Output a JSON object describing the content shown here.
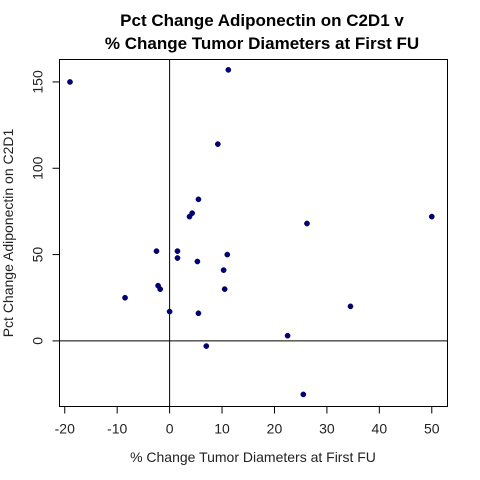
{
  "chart_data": {
    "type": "scatter",
    "title_lines": [
      "Pct Change Adiponectin on C2D1 v",
      "% Change Tumor Diameters at First FU"
    ],
    "xlabel": "% Change Tumor Diameters at First FU",
    "ylabel": "Pct Change Adiponectin on C2D1",
    "xlim": [
      -21,
      53
    ],
    "ylim": [
      -38,
      163
    ],
    "xticks": [
      -20,
      -10,
      0,
      10,
      20,
      30,
      40,
      50
    ],
    "yticks": [
      0,
      50,
      100,
      150
    ],
    "reference_lines": {
      "x": 0,
      "y": 0
    },
    "grid": false,
    "point_color": "#00007f",
    "points": [
      {
        "x": -19,
        "y": 150
      },
      {
        "x": -8.5,
        "y": 25
      },
      {
        "x": -2.5,
        "y": 52
      },
      {
        "x": -2.2,
        "y": 32
      },
      {
        "x": -1.8,
        "y": 30
      },
      {
        "x": 0,
        "y": 17
      },
      {
        "x": 1.5,
        "y": 52
      },
      {
        "x": 1.5,
        "y": 48
      },
      {
        "x": 3.8,
        "y": 72
      },
      {
        "x": 4.3,
        "y": 74
      },
      {
        "x": 5.3,
        "y": 46
      },
      {
        "x": 5.5,
        "y": 82
      },
      {
        "x": 5.5,
        "y": 16
      },
      {
        "x": 7,
        "y": -3
      },
      {
        "x": 9.2,
        "y": 114
      },
      {
        "x": 10.3,
        "y": 41
      },
      {
        "x": 10.5,
        "y": 30
      },
      {
        "x": 11,
        "y": 50
      },
      {
        "x": 11.2,
        "y": 157
      },
      {
        "x": 22.5,
        "y": 3
      },
      {
        "x": 25.5,
        "y": -31
      },
      {
        "x": 26.2,
        "y": 68
      },
      {
        "x": 34.5,
        "y": 20
      },
      {
        "x": 50,
        "y": 72
      }
    ]
  }
}
